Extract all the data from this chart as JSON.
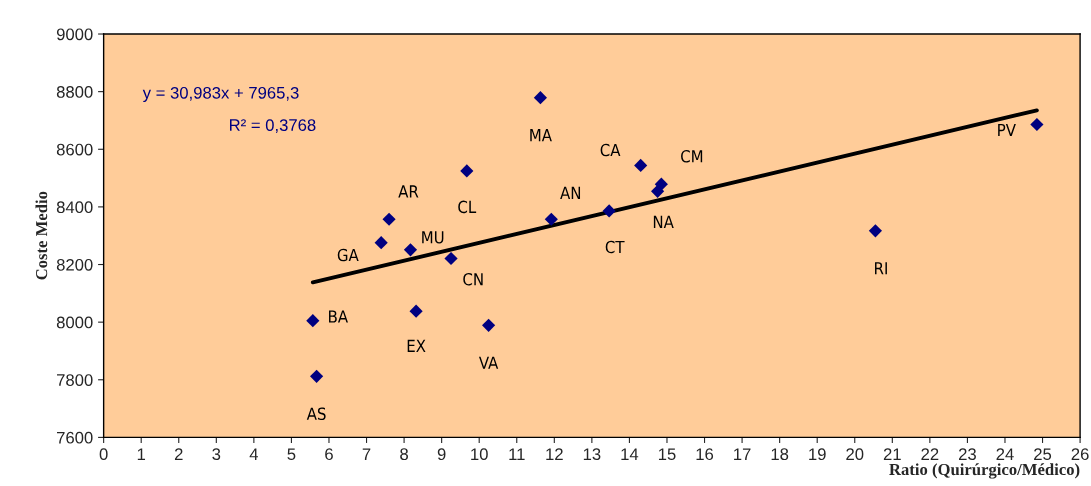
{
  "chart_data": {
    "type": "scatter",
    "xlabel": "Ratio (Quirúrgico/Médico)",
    "ylabel": "Coste Medio",
    "xlim": [
      0,
      26
    ],
    "xticks": [
      0,
      1,
      2,
      3,
      4,
      5,
      6,
      7,
      8,
      9,
      10,
      11,
      12,
      13,
      14,
      15,
      16,
      17,
      18,
      19,
      20,
      21,
      22,
      23,
      24,
      25,
      26
    ],
    "ylim": [
      7600,
      9000
    ],
    "yticks": [
      7600,
      7800,
      8000,
      8200,
      8400,
      8600,
      8800,
      9000
    ],
    "grid": false,
    "marker": "diamond",
    "series": [
      {
        "color": "#000080",
        "x": [
          5.57,
          5.67,
          7.39,
          7.6,
          8.17,
          8.32,
          9.25,
          9.67,
          10.25,
          11.63,
          11.92,
          13.46,
          14.3,
          14.85,
          14.75,
          20.55,
          24.85
        ],
        "values": [
          8005,
          7812,
          8276,
          8357,
          8251,
          8038,
          8221,
          8525,
          7989,
          8779,
          8357,
          8386,
          8544,
          8479,
          8454,
          8317,
          8686
        ]
      },
      {
        "type": "line",
        "marker": "none",
        "color": "#000000",
        "x": [
          5.57,
          24.85
        ],
        "values": [
          8138,
          8735
        ]
      }
    ],
    "annotations": [
      {
        "text": "BA",
        "x": 5.57,
        "y": 8005
      },
      {
        "text": "AS",
        "x": 5.67,
        "y": 7812
      },
      {
        "text": "GA",
        "x": 7.39,
        "y": 8276
      },
      {
        "text": "AR",
        "x": 7.6,
        "y": 8357
      },
      {
        "text": "MU",
        "x": 8.17,
        "y": 8251
      },
      {
        "text": "EX",
        "x": 8.32,
        "y": 8038
      },
      {
        "text": "CN",
        "x": 9.25,
        "y": 8221
      },
      {
        "text": "CL",
        "x": 9.67,
        "y": 8525
      },
      {
        "text": "VA",
        "x": 10.25,
        "y": 7989
      },
      {
        "text": "MA",
        "x": 11.63,
        "y": 8779
      },
      {
        "text": "AN",
        "x": 11.92,
        "y": 8357
      },
      {
        "text": "CT",
        "x": 13.46,
        "y": 8386
      },
      {
        "text": "CA",
        "x": 14.3,
        "y": 8544
      },
      {
        "text": "CM",
        "x": 14.85,
        "y": 8479
      },
      {
        "text": "NA",
        "x": 14.75,
        "y": 8454
      },
      {
        "text": "RI",
        "x": 20.55,
        "y": 8317
      },
      {
        "text": "PV",
        "x": 24.85,
        "y": 8686
      },
      "y = 30,983x + 7965,3",
      "R² = 0,3768"
    ]
  }
}
